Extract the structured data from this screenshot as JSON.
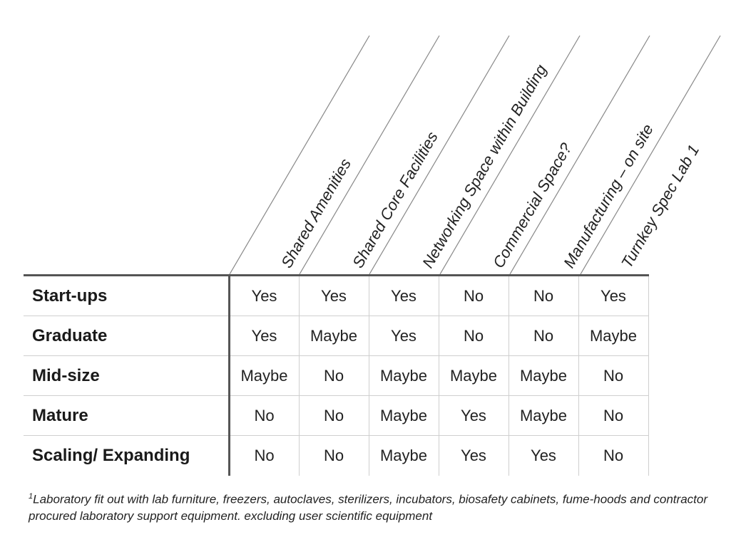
{
  "columns": [
    {
      "label": "Shared Amenities"
    },
    {
      "label": "Shared Core Facilities"
    },
    {
      "label": "Networking Space within Building"
    },
    {
      "label": "Commercial Space?"
    },
    {
      "label": "Manufacturing – on site"
    },
    {
      "label": "Turnkey Spec Lab 1"
    }
  ],
  "rows": [
    {
      "label": "Start-ups",
      "values": [
        "Yes",
        "Yes",
        "Yes",
        "No",
        "No",
        "Yes"
      ]
    },
    {
      "label": "Graduate",
      "values": [
        "Yes",
        "Maybe",
        "Yes",
        "No",
        "No",
        "Maybe"
      ]
    },
    {
      "label": "Mid-size",
      "values": [
        "Maybe",
        "No",
        "Maybe",
        "Maybe",
        "Maybe",
        "No"
      ]
    },
    {
      "label": "Mature",
      "values": [
        "No",
        "No",
        "Maybe",
        "Yes",
        "Maybe",
        "No"
      ]
    },
    {
      "label": "Scaling/ Expanding",
      "values": [
        "No",
        "No",
        "Maybe",
        "Yes",
        "Yes",
        "No"
      ]
    }
  ],
  "footnote": {
    "marker": "1",
    "text": "Laboratory fit out with lab furniture, freezers, autoclaves, sterilizers, incubators, biosafety cabinets, fume-hoods and contractor procured laboratory support equipment. excluding user scientific equipment"
  }
}
